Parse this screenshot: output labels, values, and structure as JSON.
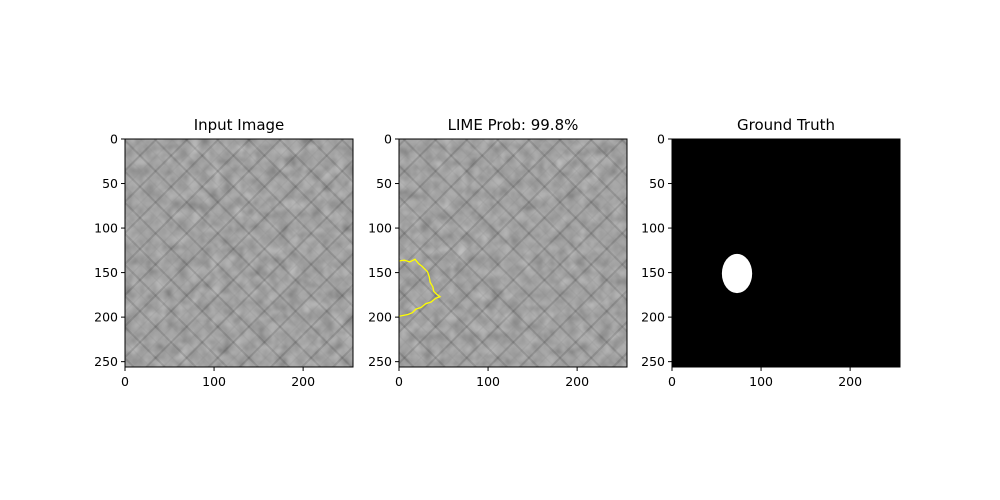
{
  "chart_data": [
    {
      "type": "heatmap",
      "title": "Input Image",
      "xlabel": "",
      "ylabel": "",
      "xlim": [
        0,
        256
      ],
      "ylim": [
        256,
        0
      ],
      "x_ticks": [
        "0",
        "100",
        "200"
      ],
      "y_ticks": [
        "0",
        "50",
        "100",
        "150",
        "200",
        "250"
      ],
      "image": "grayscale-texture"
    },
    {
      "type": "heatmap",
      "title": "LIME Prob: 99.8%",
      "xlabel": "",
      "ylabel": "",
      "xlim": [
        0,
        256
      ],
      "ylim": [
        256,
        0
      ],
      "x_ticks": [
        "0",
        "100",
        "200"
      ],
      "y_ticks": [
        "0",
        "50",
        "100",
        "150",
        "200",
        "250"
      ],
      "image": "grayscale-texture",
      "contour_color": "#ffff00",
      "contour": [
        [
          0,
          137
        ],
        [
          6,
          136
        ],
        [
          12,
          138
        ],
        [
          18,
          135
        ],
        [
          22,
          140
        ],
        [
          26,
          143
        ],
        [
          29,
          146
        ],
        [
          32,
          149
        ],
        [
          34,
          155
        ],
        [
          35,
          161
        ],
        [
          38,
          166
        ],
        [
          39,
          171
        ],
        [
          42,
          174
        ],
        [
          46,
          177
        ],
        [
          41,
          179
        ],
        [
          36,
          183
        ],
        [
          30,
          185
        ],
        [
          25,
          189
        ],
        [
          19,
          191
        ],
        [
          15,
          195
        ],
        [
          10,
          197
        ],
        [
          5,
          198
        ],
        [
          0,
          199
        ]
      ]
    },
    {
      "type": "heatmap",
      "title": "Ground Truth",
      "xlabel": "",
      "ylabel": "",
      "xlim": [
        0,
        256
      ],
      "ylim": [
        256,
        0
      ],
      "x_ticks": [
        "0",
        "100",
        "200"
      ],
      "y_ticks": [
        "0",
        "50",
        "100",
        "150",
        "200",
        "250"
      ],
      "image": "binary-mask",
      "mask_color": "#000000",
      "ellipse": {
        "cx": 73,
        "cy": 151,
        "rx": 17,
        "ry": 22,
        "color": "#ffffff"
      }
    }
  ]
}
